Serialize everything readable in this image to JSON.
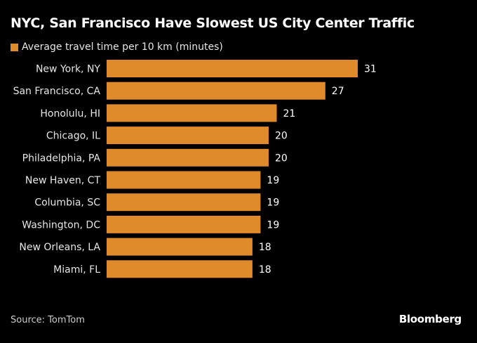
{
  "chart_data": {
    "type": "bar",
    "orientation": "horizontal",
    "title": "NYC, San Francisco Have Slowest US City Center Traffic",
    "xlabel": "",
    "ylabel": "",
    "legend": {
      "position": "top-left",
      "entries": [
        {
          "name": "Average travel time per 10 km (minutes)",
          "color": "#e08b2b"
        }
      ]
    },
    "categories": [
      "New York, NY",
      "San Francisco, CA",
      "Honolulu, HI",
      "Chicago, IL",
      "Philadelphia, PA",
      "New Haven, CT",
      "Columbia, SC",
      "Washington, DC",
      "New Orleans, LA",
      "Miami, FL"
    ],
    "series": [
      {
        "name": "Average travel time per 10 km (minutes)",
        "values": [
          31,
          27,
          21,
          20,
          20,
          19,
          19,
          19,
          18,
          18
        ],
        "color": "#e08b2b"
      }
    ],
    "xlim": [
      0,
      31
    ],
    "grid": false,
    "data_labels": true
  },
  "footer": {
    "source": "Source: TomTom",
    "brand": "Bloomberg"
  }
}
